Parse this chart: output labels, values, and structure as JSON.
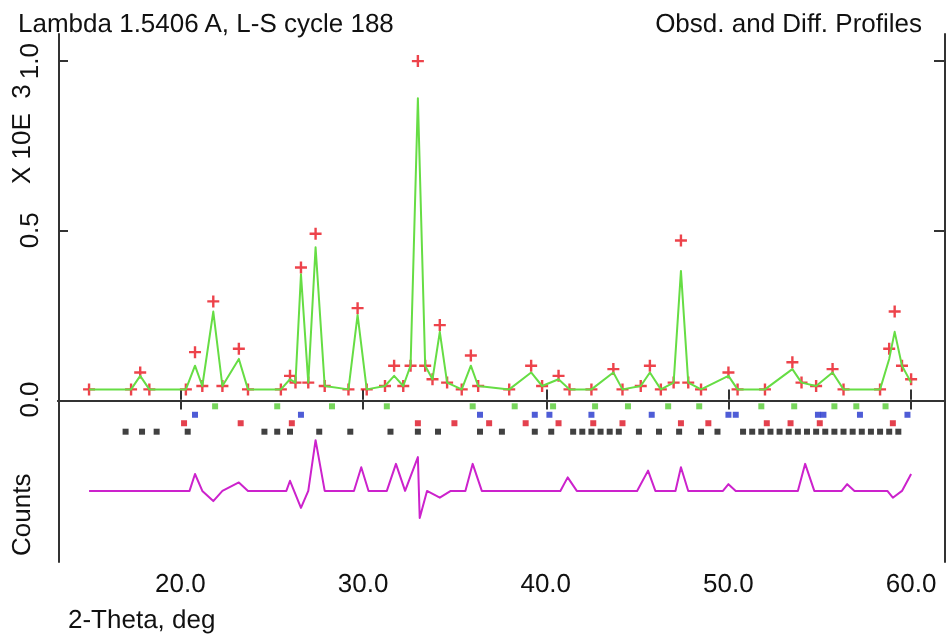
{
  "chart_data": {
    "type": "line",
    "title": "Lambda 1.5406 A, L-S cycle 188",
    "subtitle": "Obsd. and Diff. Profiles",
    "xlabel": "2-Theta, deg",
    "ylabel": "Counts",
    "annotations": [
      "X 10E  3"
    ],
    "xlim": [
      13.3,
      61.8
    ],
    "xticks": [
      {
        "value": 20,
        "label": "20.0"
      },
      {
        "value": 30,
        "label": "30.0"
      },
      {
        "value": 40,
        "label": "40.0"
      },
      {
        "value": 50,
        "label": "50.0"
      },
      {
        "value": 60,
        "label": "60.0"
      }
    ],
    "ylim": [
      -0.48,
      1.08
    ],
    "yticks": [
      {
        "value": 0,
        "label": "0.0"
      },
      {
        "value": 0.5,
        "label": "0.5"
      },
      {
        "value": 1,
        "label": "1.0"
      }
    ],
    "x": [
      15,
      17.3,
      17.8,
      18.3,
      20.3,
      20.8,
      21.2,
      21.8,
      22.3,
      23.2,
      23.7,
      25.5,
      26.0,
      26.3,
      26.6,
      27.0,
      27.4,
      27.9,
      29.2,
      29.7,
      30.2,
      31.2,
      31.7,
      32.2,
      32.6,
      33.0,
      33.4,
      33.8,
      34.2,
      34.6,
      35.4,
      35.9,
      36.3,
      38.0,
      39.2,
      39.8,
      40.7,
      41.3,
      42.5,
      43.7,
      44.2,
      45.2,
      45.7,
      46.3,
      47.0,
      47.4,
      47.8,
      48.5,
      50.0,
      50.5,
      52.0,
      53.5,
      54.0,
      54.8,
      55.7,
      56.3,
      58.3,
      58.8,
      59.1,
      59.5,
      60.0
    ],
    "series": [
      {
        "color": "#66dd44",
        "marker": "none",
        "values": [
          0.03,
          0.03,
          0.07,
          0.03,
          0.03,
          0.1,
          0.04,
          0.26,
          0.04,
          0.12,
          0.03,
          0.03,
          0.06,
          0.05,
          0.37,
          0.05,
          0.45,
          0.04,
          0.03,
          0.25,
          0.03,
          0.04,
          0.07,
          0.04,
          0.1,
          0.89,
          0.1,
          0.06,
          0.2,
          0.05,
          0.03,
          0.1,
          0.04,
          0.03,
          0.08,
          0.04,
          0.06,
          0.03,
          0.03,
          0.08,
          0.03,
          0.04,
          0.08,
          0.03,
          0.05,
          0.38,
          0.05,
          0.03,
          0.07,
          0.03,
          0.03,
          0.09,
          0.05,
          0.04,
          0.08,
          0.03,
          0.03,
          0.12,
          0.2,
          0.1,
          0.05
        ]
      },
      {
        "type": "scatter",
        "color": "#e8141e",
        "marker": "cross",
        "values": [
          0.03,
          0.03,
          0.08,
          0.03,
          0.03,
          0.14,
          0.04,
          0.29,
          0.04,
          0.15,
          0.03,
          0.03,
          0.07,
          0.05,
          0.39,
          0.05,
          0.49,
          0.04,
          0.03,
          0.27,
          0.03,
          0.04,
          0.1,
          0.04,
          0.1,
          1.0,
          0.1,
          0.06,
          0.22,
          0.05,
          0.03,
          0.13,
          0.04,
          0.03,
          0.1,
          0.04,
          0.07,
          0.03,
          0.03,
          0.09,
          0.03,
          0.04,
          0.1,
          0.03,
          0.05,
          0.47,
          0.05,
          0.03,
          0.08,
          0.03,
          0.03,
          0.11,
          0.05,
          0.04,
          0.09,
          0.03,
          0.03,
          0.15,
          0.26,
          0.1,
          0.06
        ]
      },
      {
        "color": "#cc22cc",
        "marker": "none",
        "x": [
          15,
          20.5,
          20.8,
          21.2,
          21.8,
          22.3,
          23.2,
          23.7,
          25.8,
          26.0,
          26.6,
          27.0,
          27.4,
          27.9,
          29.5,
          29.9,
          30.3,
          31.3,
          31.8,
          32.3,
          33.0,
          33.1,
          33.5,
          34.2,
          34.8,
          35.6,
          36.0,
          36.5,
          40.8,
          41.2,
          41.7,
          45.0,
          45.6,
          46.0,
          47.1,
          47.4,
          47.8,
          49.7,
          50.0,
          50.4,
          53.8,
          54.2,
          54.7,
          56.2,
          56.5,
          56.9,
          58.7,
          59.0,
          59.5,
          60.0
        ],
        "values": [
          -0.27,
          -0.27,
          -0.22,
          -0.27,
          -0.3,
          -0.27,
          -0.245,
          -0.27,
          -0.27,
          -0.24,
          -0.32,
          -0.27,
          -0.12,
          -0.27,
          -0.27,
          -0.2,
          -0.27,
          -0.27,
          -0.19,
          -0.27,
          -0.17,
          -0.35,
          -0.27,
          -0.29,
          -0.27,
          -0.27,
          -0.19,
          -0.27,
          -0.27,
          -0.23,
          -0.27,
          -0.27,
          -0.21,
          -0.27,
          -0.27,
          -0.2,
          -0.27,
          -0.27,
          -0.25,
          -0.27,
          -0.27,
          -0.19,
          -0.27,
          -0.27,
          -0.25,
          -0.27,
          -0.27,
          -0.29,
          -0.27,
          -0.22
        ]
      },
      {
        "type": "scatter",
        "color": "#55cc33",
        "marker": "square",
        "x": [
          21.9,
          25.3,
          28.3,
          31.3,
          36.0,
          38.3,
          40.4,
          42.7,
          44.5,
          46.7,
          48.4,
          51.8,
          53.6,
          55.8,
          57.0,
          58.6
        ],
        "values": [
          -0.02,
          -0.02,
          -0.02,
          -0.02,
          -0.02,
          -0.02,
          -0.02,
          -0.02,
          -0.02,
          -0.02,
          -0.02,
          -0.02,
          -0.02,
          -0.02,
          -0.02,
          -0.02
        ]
      },
      {
        "type": "scatter",
        "color": "#2233cc",
        "marker": "square",
        "x": [
          20.8,
          26.6,
          36.4,
          39.4,
          40.2,
          42.5,
          45.8,
          50.0,
          50.4,
          54.9,
          55.2,
          57.2,
          59.8
        ],
        "values": [
          -0.045,
          -0.045,
          -0.045,
          -0.045,
          -0.045,
          -0.045,
          -0.045,
          -0.045,
          -0.045,
          -0.045,
          -0.045,
          -0.045,
          -0.045
        ]
      },
      {
        "type": "scatter",
        "color": "#dd1122",
        "marker": "square",
        "x": [
          20.2,
          23.3,
          26.1,
          33.0,
          35.0,
          36.9,
          38.9,
          40.7,
          42.6,
          44.2,
          47.4,
          48.9,
          52.1,
          53.4,
          55.0,
          59.0
        ],
        "values": [
          -0.07,
          -0.07,
          -0.07,
          -0.07,
          -0.07,
          -0.07,
          -0.07,
          -0.07,
          -0.07,
          -0.07,
          -0.07,
          -0.07,
          -0.07,
          -0.07,
          -0.07,
          -0.07
        ]
      },
      {
        "type": "scatter",
        "color": "#111111",
        "marker": "square",
        "x": [
          17.0,
          17.9,
          18.7,
          20.4,
          24.6,
          25.3,
          26.0,
          27.6,
          29.3,
          31.5,
          33.0,
          34.1,
          36.4,
          37.6,
          39.4,
          40.3,
          41.5,
          42.0,
          42.5,
          43.0,
          43.5,
          44.0,
          45.1,
          46.2,
          47.3,
          48.5,
          49.4,
          50.8,
          51.3,
          51.8,
          52.3,
          52.8,
          53.3,
          53.8,
          54.3,
          54.8,
          55.3,
          55.8,
          56.3,
          56.8,
          57.3,
          57.8,
          58.3,
          58.8,
          59.3
        ],
        "values": [
          -0.095,
          -0.095,
          -0.095,
          -0.095,
          -0.095,
          -0.095,
          -0.095,
          -0.095,
          -0.095,
          -0.095,
          -0.095,
          -0.095,
          -0.095,
          -0.095,
          -0.095,
          -0.095,
          -0.095,
          -0.095,
          -0.095,
          -0.095,
          -0.095,
          -0.095,
          -0.095,
          -0.095,
          -0.095,
          -0.095,
          -0.095,
          -0.095,
          -0.095,
          -0.095,
          -0.095,
          -0.095,
          -0.095,
          -0.095,
          -0.095,
          -0.095,
          -0.095,
          -0.095,
          -0.095,
          -0.095,
          -0.095,
          -0.095,
          -0.095,
          -0.095,
          -0.095
        ]
      }
    ]
  }
}
